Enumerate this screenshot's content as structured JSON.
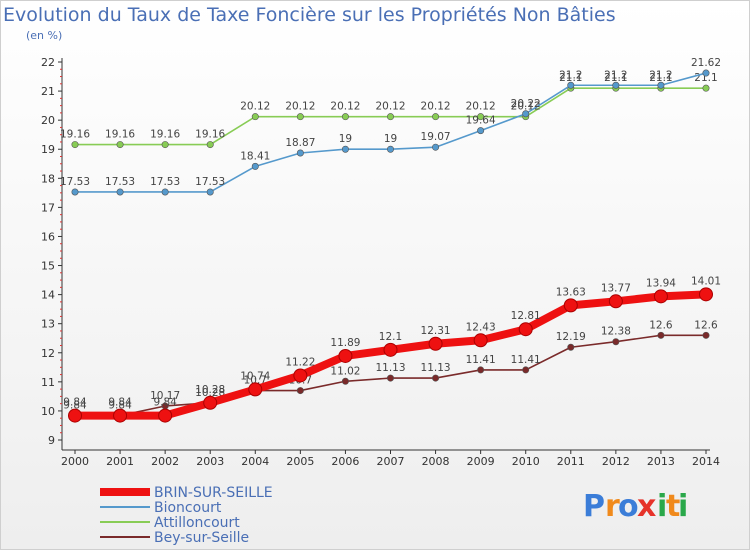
{
  "chart_data": {
    "type": "line",
    "title": "Evolution du Taux de Taxe Foncière sur les Propriétés Non Bâties",
    "subtitle": "(en %)",
    "x": [
      2000,
      2001,
      2002,
      2003,
      2004,
      2005,
      2006,
      2007,
      2008,
      2009,
      2010,
      2011,
      2012,
      2013,
      2014
    ],
    "ylim": [
      9,
      22
    ],
    "yticks": [
      9,
      10,
      11,
      12,
      13,
      14,
      15,
      16,
      17,
      18,
      19,
      20,
      21,
      22
    ],
    "grid": false,
    "legend": "bottom-left",
    "series": [
      {
        "name": "Bey-sur-Seille",
        "color": "#7a2a2a",
        "values": [
          9.84,
          9.84,
          10.17,
          10.28,
          10.7,
          10.7,
          11.02,
          11.13,
          11.13,
          11.41,
          11.41,
          12.19,
          12.38,
          12.6,
          12.6
        ],
        "labels": [
          "9.84",
          "9.84",
          "10.17",
          "10.28",
          "10.7",
          "10.7",
          "11.02",
          "11.13",
          "11.13",
          "11.41",
          "11.41",
          "12.19",
          "12.38",
          "12.6",
          "12.6"
        ]
      },
      {
        "name": "Attilloncourt",
        "color": "#88cc55",
        "values": [
          19.16,
          19.16,
          19.16,
          19.16,
          20.12,
          20.12,
          20.12,
          20.12,
          20.12,
          20.12,
          20.12,
          21.1,
          21.1,
          21.1,
          21.1
        ],
        "labels": [
          "19.16",
          "19.16",
          "19.16",
          "19.16",
          "20.12",
          "20.12",
          "20.12",
          "20.12",
          "20.12",
          "20.12",
          "20.12",
          "21.1",
          "21.1",
          "21.1",
          "21.1"
        ]
      },
      {
        "name": "Bioncourt",
        "color": "#5599cc",
        "values": [
          17.53,
          17.53,
          17.53,
          17.53,
          18.41,
          18.87,
          19,
          19,
          19.07,
          19.64,
          20.22,
          21.2,
          21.2,
          21.2,
          21.62
        ],
        "labels": [
          "17.53",
          "17.53",
          "17.53",
          "17.53",
          "18.41",
          "18.87",
          "19",
          "19",
          "19.07",
          "19.64",
          "20.22",
          "21.2",
          "21.2",
          "21.2",
          "21.62"
        ]
      },
      {
        "name": "BRIN-SUR-SEILLE",
        "color": "#ee1111",
        "values": [
          9.84,
          9.84,
          9.84,
          10.28,
          10.74,
          11.22,
          11.89,
          12.1,
          12.31,
          12.43,
          12.81,
          13.63,
          13.77,
          13.94,
          14.01
        ],
        "labels": [
          "9.84",
          "9.84",
          "9.84",
          "10.28",
          "10.74",
          "11.22",
          "11.89",
          "12.1",
          "12.31",
          "12.43",
          "12.81",
          "13.63",
          "13.77",
          "13.94",
          "14.01"
        ]
      }
    ],
    "legend_order": [
      "BRIN-SUR-SEILLE",
      "Bioncourt",
      "Attilloncourt",
      "Bey-sur-Seille"
    ]
  },
  "logo": {
    "text": "Proxiti",
    "letters": [
      "P",
      "r",
      "o",
      "x",
      "i",
      "t",
      "i"
    ],
    "colors": [
      "#3b7dd8",
      "#f08a1c",
      "#3b7dd8",
      "#e6332a",
      "#2aa84a",
      "#f08a1c",
      "#2aa84a"
    ]
  }
}
